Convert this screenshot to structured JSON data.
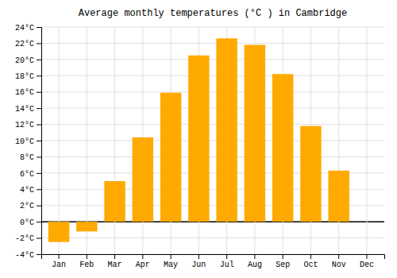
{
  "chart_data": {
    "type": "bar",
    "title": "Average monthly temperatures (°C ) in Cambridge",
    "categories": [
      "Jan",
      "Feb",
      "Mar",
      "Apr",
      "May",
      "Jun",
      "Jul",
      "Aug",
      "Sep",
      "Oct",
      "Nov",
      "Dec"
    ],
    "values": [
      -2.5,
      -1.2,
      5.0,
      10.4,
      15.9,
      20.5,
      22.6,
      21.8,
      18.2,
      11.8,
      6.3,
      0.0
    ],
    "color": "#FFAA00",
    "ylim": [
      -4,
      24
    ],
    "yticks": [
      {
        "value": -4,
        "label": "-4°C"
      },
      {
        "value": -2,
        "label": "-2°C"
      },
      {
        "value": 0,
        "label": "0°C"
      },
      {
        "value": 2,
        "label": "2°C"
      },
      {
        "value": 4,
        "label": "4°C"
      },
      {
        "value": 6,
        "label": "6°C"
      },
      {
        "value": 8,
        "label": "8°C"
      },
      {
        "value": 10,
        "label": "10°C"
      },
      {
        "value": 12,
        "label": "12°C"
      },
      {
        "value": 14,
        "label": "14°C"
      },
      {
        "value": 16,
        "label": "16°C"
      },
      {
        "value": 18,
        "label": "18°C"
      },
      {
        "value": 20,
        "label": "20°C"
      },
      {
        "value": 22,
        "label": "22°C"
      },
      {
        "value": 24,
        "label": "24°C"
      }
    ],
    "grid": true
  }
}
